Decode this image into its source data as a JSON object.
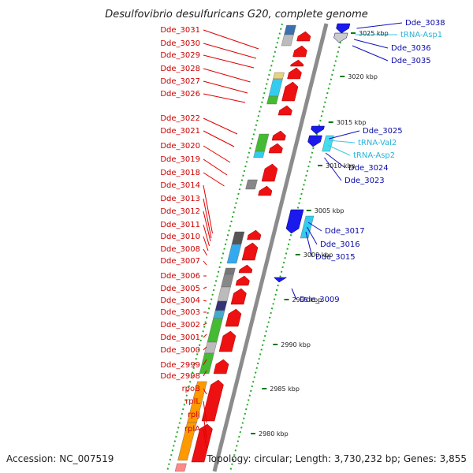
{
  "title": "Desulfovibrio desulfuricans G20, complete genome",
  "footer": {
    "accession": "Accession: NC_007519",
    "topology": "Topology: circular; Length: 3,730,232 bp; Genes: 3,855"
  },
  "colors": {
    "forward_gene": "#ee1111",
    "reverse_gene": "#1a1aee",
    "backbone": "#8c8c8c",
    "tick_dots": "#22aa22",
    "left_label": "#cc0000",
    "right_label": "#0a0aa8",
    "trna_label": "#2bb3d6"
  },
  "scale_ticks": [
    "3025 kbp",
    "3020 kbp",
    "3015 kbp",
    "3010 kbp",
    "3005 kbp",
    "3000 kbp",
    "2995 kbp",
    "2990 kbp",
    "2985 kbp",
    "2980 kbp"
  ],
  "left_labels": [
    "Dde_3031",
    "Dde_3030",
    "Dde_3029",
    "Dde_3028",
    "Dde_3027",
    "Dde_3026",
    "Dde_3022",
    "Dde_3021",
    "Dde_3020",
    "Dde_3019",
    "Dde_3018",
    "Dde_3014",
    "Dde_3013",
    "Dde_3012",
    "Dde_3011",
    "Dde_3010",
    "Dde_3008",
    "Dde_3007",
    "Dde_3006",
    "Dde_3005",
    "Dde_3004",
    "Dde_3003",
    "Dde_3002",
    "Dde_3001",
    "Dde_3000",
    "Dde_2999",
    "Dde_2998",
    "rpoB",
    "rplL",
    "rplJ",
    "rplA"
  ],
  "right_labels": [
    {
      "text": "Dde_3038",
      "kind": "gene"
    },
    {
      "text": "tRNA-Asp1",
      "kind": "trna"
    },
    {
      "text": "Dde_3036",
      "kind": "gene"
    },
    {
      "text": "Dde_3035",
      "kind": "gene"
    },
    {
      "text": "Dde_3025",
      "kind": "gene"
    },
    {
      "text": "tRNA-Val2",
      "kind": "trna"
    },
    {
      "text": "tRNA-Asp2",
      "kind": "trna"
    },
    {
      "text": "Dde_3024",
      "kind": "gene"
    },
    {
      "text": "Dde_3023",
      "kind": "gene"
    },
    {
      "text": "Dde_3017",
      "kind": "gene"
    },
    {
      "text": "Dde_3016",
      "kind": "gene"
    },
    {
      "text": "Dde_3015",
      "kind": "gene"
    },
    {
      "text": "Dde_3009",
      "kind": "gene"
    }
  ]
}
